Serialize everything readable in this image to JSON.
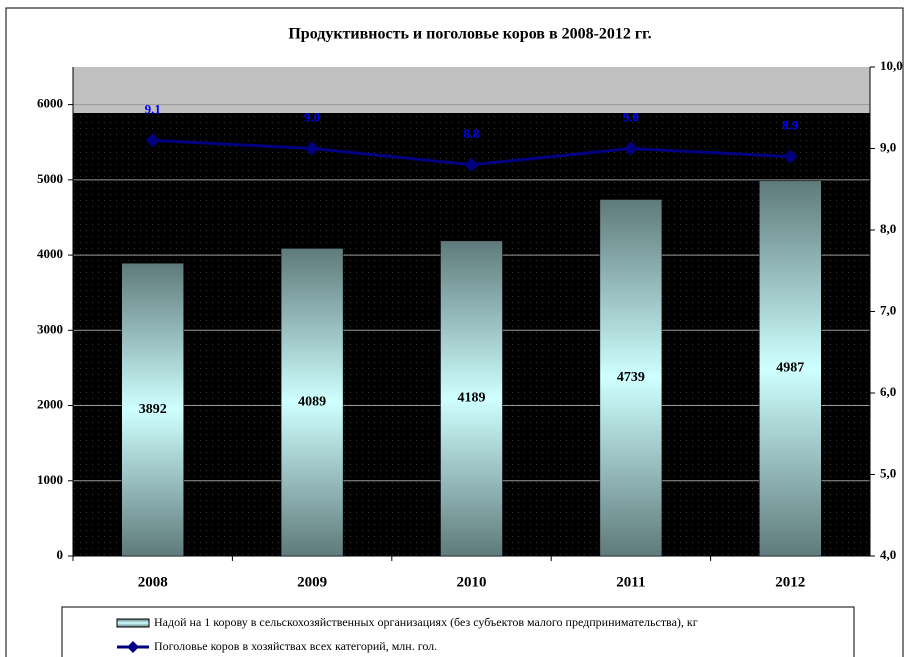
{
  "chart_data": {
    "type": "bar",
    "title": "Продуктивность и поголовье коров в 2008-2012 гг.",
    "categories": [
      "2008",
      "2009",
      "2010",
      "2011",
      "2012"
    ],
    "series": [
      {
        "name": "Надой на 1 корову в сельскохозяйственных организациях (без субъектов малого предпринимательства), кг",
        "type": "bar",
        "color": "#cfffff",
        "values": [
          3892,
          4089,
          4189,
          4739,
          4987
        ]
      },
      {
        "name": "Поголовье коров в хозяйствах всех категорий, млн. гол.",
        "type": "line",
        "axis": "y2",
        "color": "#000080",
        "values": [
          9.1,
          9.0,
          8.8,
          9.0,
          8.9
        ],
        "value_labels": [
          "9.1",
          "9.0",
          "8.8",
          "9.0",
          "8.9"
        ]
      }
    ],
    "ylim": [
      0,
      6500
    ],
    "yticks": [
      0,
      1000,
      2000,
      3000,
      4000,
      5000,
      6000
    ],
    "y2lim": [
      4,
      10
    ],
    "y2ticks": [
      {
        "value": 4,
        "label": "4,0"
      },
      {
        "value": 5,
        "label": "5,0"
      },
      {
        "value": 6,
        "label": "6,0"
      },
      {
        "value": 7,
        "label": "7,0"
      },
      {
        "value": 8,
        "label": "8,0"
      },
      {
        "value": 9,
        "label": "9,0"
      },
      {
        "value": 10,
        "label": "10,0"
      }
    ],
    "grid": true
  }
}
